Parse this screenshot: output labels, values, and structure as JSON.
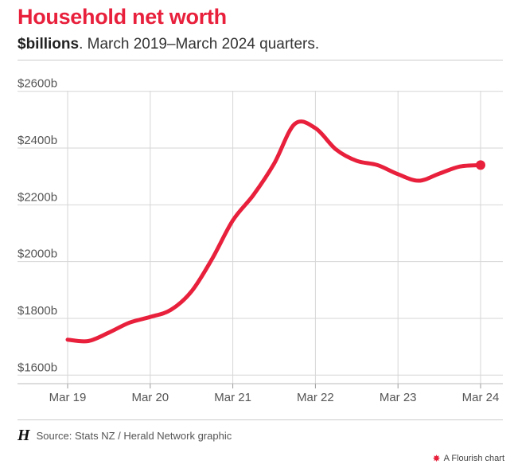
{
  "header": {
    "title": "Household net worth",
    "subtitle_bold": "$billions",
    "subtitle_rest": ". March 2019–March 2024 quarters."
  },
  "footer": {
    "logo_glyph": "H",
    "source": "Source: Stats NZ / Herald Network graphic",
    "credit": "A Flourish chart"
  },
  "colors": {
    "title": "#e8203c",
    "line": "#e8203c"
  },
  "chart_data": {
    "type": "line",
    "title": "Household net worth",
    "subtitle": "$billions. March 2019–March 2024 quarters.",
    "x_ticks": [
      "Mar 19",
      "Mar 20",
      "Mar 21",
      "Mar 22",
      "Mar 23",
      "Mar 24"
    ],
    "y_ticks": [
      "$1600b",
      "$1800b",
      "$2000b",
      "$2200b",
      "$2400b",
      "$2600b"
    ],
    "y_tick_values": [
      1600,
      1800,
      2000,
      2200,
      2400,
      2600
    ],
    "ylim": [
      1570,
      2630
    ],
    "xlim": [
      0,
      20
    ],
    "grid": true,
    "series": [
      {
        "x": [
          0,
          1,
          2,
          3,
          4,
          5,
          6,
          7,
          8,
          9,
          10,
          11,
          12,
          13,
          14,
          15,
          16,
          17,
          18,
          19,
          20
        ],
        "values": [
          1725,
          1720,
          1750,
          1785,
          1805,
          1830,
          1895,
          2010,
          2145,
          2235,
          2345,
          2485,
          2470,
          2395,
          2355,
          2340,
          2308,
          2285,
          2310,
          2335,
          2340
        ]
      }
    ]
  }
}
